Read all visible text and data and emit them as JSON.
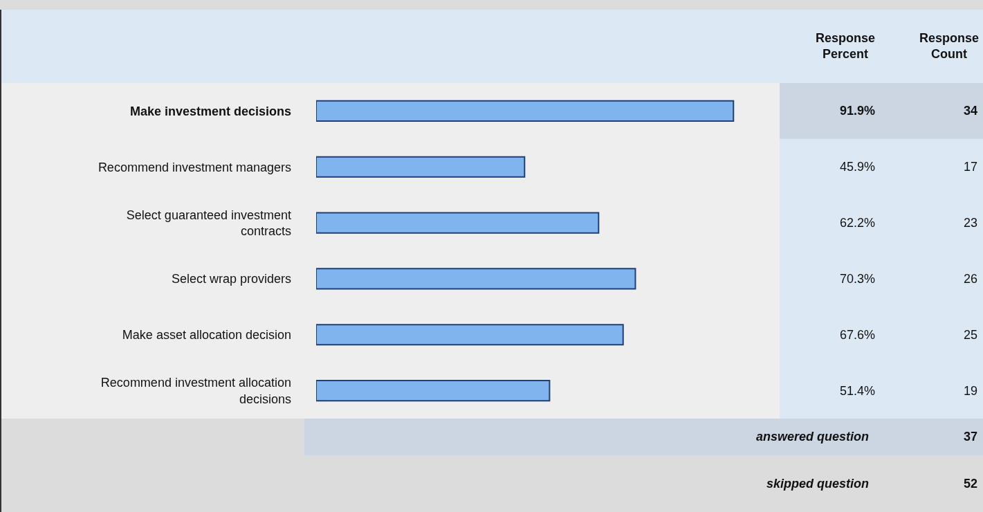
{
  "chart_data": {
    "type": "bar",
    "orientation": "horizontal",
    "categories": [
      "Make investment decisions",
      "Recommend investment managers",
      "Select guaranteed investment contracts",
      "Select wrap providers",
      "Make asset allocation decision",
      "Recommend investment allocation decisions"
    ],
    "values": [
      91.9,
      45.9,
      62.2,
      70.3,
      67.6,
      51.4
    ],
    "value_labels": [
      "91.9%",
      "45.9%",
      "62.2%",
      "70.3%",
      "67.6%",
      "51.4%"
    ],
    "color": "#80b4ee",
    "tick_labels": "y",
    "annotations": [
      "Response Percent",
      "Response Count",
      "34",
      "17",
      "23",
      "26",
      "25",
      "19",
      "answered question",
      "37",
      "skipped question",
      "52"
    ]
  }
}
